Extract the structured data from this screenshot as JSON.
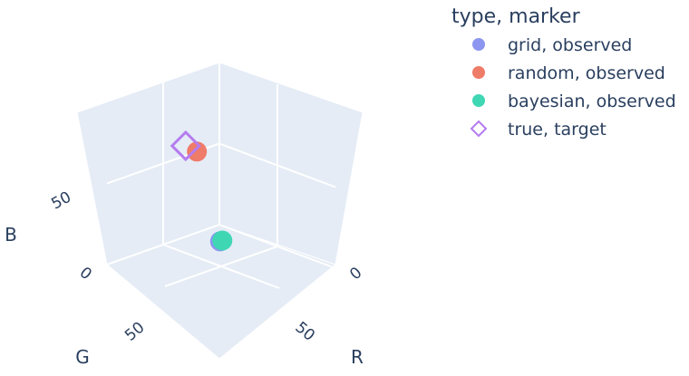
{
  "chart_data": {
    "type": "scatter",
    "dimensions": "3d",
    "axes": {
      "x": {
        "label": "R",
        "ticks": [
          0,
          50
        ],
        "range": [
          0,
          100
        ]
      },
      "y": {
        "label": "G",
        "ticks": [
          0,
          50
        ],
        "range": [
          0,
          100
        ]
      },
      "z": {
        "label": "B",
        "ticks": [
          50
        ],
        "range": [
          0,
          100
        ]
      }
    },
    "grid": true,
    "background": "#e5ecf6",
    "legend": {
      "title": "type, marker",
      "placement": "top-right"
    },
    "series": [
      {
        "name": "grid, observed",
        "marker": "circle",
        "color": "#8c96f0",
        "points": [
          {
            "r": 20,
            "g": 20,
            "b": 0
          }
        ]
      },
      {
        "name": "random, observed",
        "marker": "circle",
        "color": "#ef7b69",
        "points": [
          {
            "r": 0,
            "g": 20,
            "b": 50
          }
        ]
      },
      {
        "name": "bayesian, observed",
        "marker": "circle",
        "color": "#3fd6b4",
        "points": [
          {
            "r": 20,
            "g": 18,
            "b": 0
          }
        ]
      },
      {
        "name": "true, target",
        "marker": "diamond-open",
        "color": "#b57cf0",
        "points": [
          {
            "r": 0,
            "g": 30,
            "b": 56
          }
        ]
      }
    ]
  }
}
